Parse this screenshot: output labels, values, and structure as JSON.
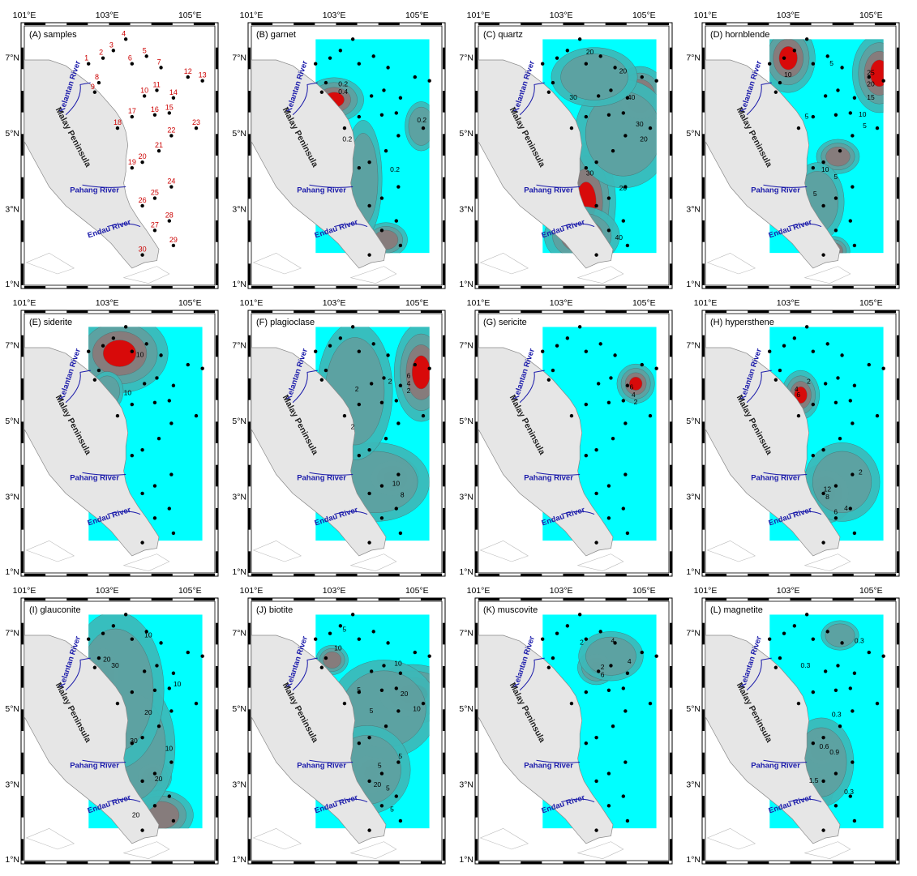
{
  "axes": {
    "lon_ticks": [
      "101°E",
      "103°E",
      "105°E"
    ],
    "lat_ticks": [
      "7°N",
      "5°N",
      "3°N",
      "1°N"
    ]
  },
  "colors": {
    "sea_fill": "#00ffff",
    "contour_mid": "#3cb8b8",
    "contour_dark": "#8a7878",
    "hotspot": "#e00000",
    "land": "#e6e6e6",
    "river": "#1a1aaa",
    "sample_label": "#cc0000"
  },
  "map_labels": {
    "peninsula": "Malay Peninsula",
    "kelantan": "Kelantan River",
    "pahang": "Pahang River",
    "endau": "Endau River"
  },
  "samples": {
    "ids": [
      "1",
      "2",
      "3",
      "4",
      "5",
      "6",
      "7",
      "8",
      "9",
      "10",
      "11",
      "12",
      "13",
      "14",
      "15",
      "16",
      "17",
      "18",
      "19",
      "20",
      "21",
      "22",
      "23",
      "24",
      "25",
      "26",
      "27",
      "28",
      "29",
      "30"
    ]
  },
  "panels": [
    {
      "id": "A",
      "title": "(A) samples",
      "contours": []
    },
    {
      "id": "B",
      "title": "(B) garnet",
      "contours": [
        "0.2",
        "0.4",
        "0.2",
        "0.2",
        "0.2"
      ]
    },
    {
      "id": "C",
      "title": "(C) quartz",
      "contours": [
        "20",
        "20",
        "30",
        "40",
        "30",
        "20",
        "30",
        "20",
        "40"
      ]
    },
    {
      "id": "D",
      "title": "(D) hornblende",
      "contours": [
        "10",
        "5",
        "25",
        "20",
        "15",
        "10",
        "5",
        "5",
        "10",
        "5",
        "5"
      ]
    },
    {
      "id": "E",
      "title": "(E) siderite",
      "contours": [
        "10",
        "10"
      ]
    },
    {
      "id": "F",
      "title": "(F) plagioclase",
      "contours": [
        "2",
        "2",
        "6",
        "4",
        "2",
        "2",
        "10",
        "8"
      ]
    },
    {
      "id": "G",
      "title": "(G) sericite",
      "contours": [
        "6",
        "4",
        "2"
      ]
    },
    {
      "id": "H",
      "title": "(H) hypersthene",
      "contours": [
        "2",
        "4",
        "6",
        "2",
        "12",
        "8",
        "6",
        "4"
      ]
    },
    {
      "id": "I",
      "title": "(I) glauconite",
      "contours": [
        "10",
        "20",
        "30",
        "10",
        "30",
        "20",
        "10",
        "20",
        "20"
      ]
    },
    {
      "id": "J",
      "title": "(J) biotite",
      "contours": [
        "5",
        "10",
        "10",
        "5",
        "5",
        "20",
        "10",
        "5",
        "5",
        "20",
        "5",
        "5"
      ]
    },
    {
      "id": "K",
      "title": "(K) muscovite",
      "contours": [
        "2",
        "4",
        "4",
        "2",
        "6"
      ]
    },
    {
      "id": "L",
      "title": "(L) magnetite",
      "contours": [
        "0.3",
        "0.3",
        "0.3",
        "0.9",
        "0.6",
        "1.5",
        "0.3"
      ]
    }
  ]
}
